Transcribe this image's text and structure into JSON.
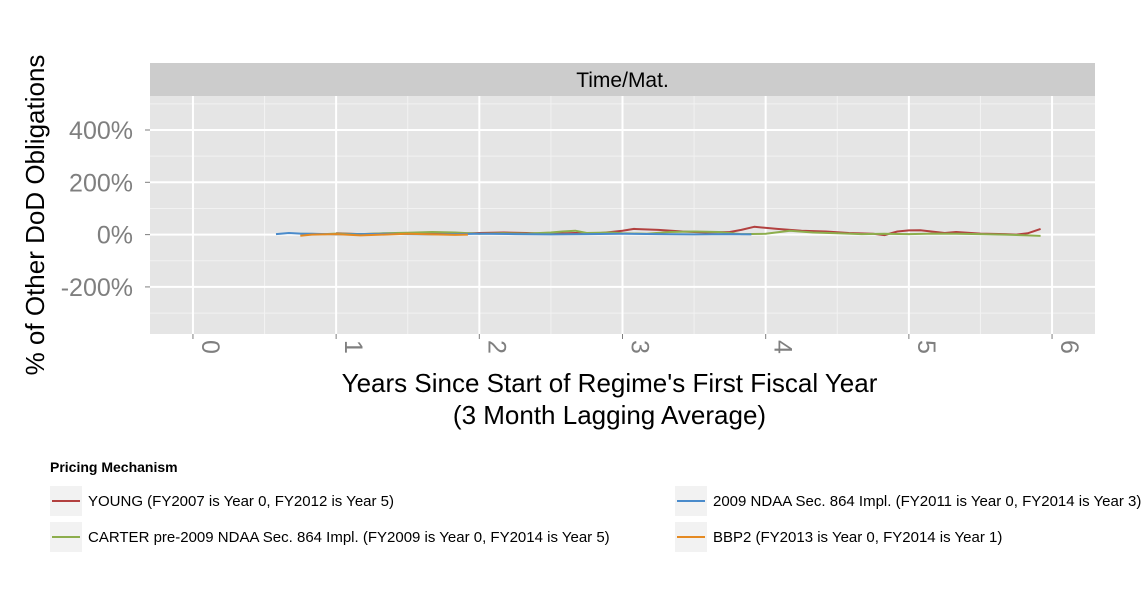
{
  "chart_data": {
    "type": "line",
    "facet_title": "Time/Mat.",
    "xlabel_line1": "Years Since Start of Regime's First Fiscal Year",
    "xlabel_line2": "(3 Month Lagging Average)",
    "ylabel": "% of Other DoD Obligations",
    "xlim": [
      -0.3,
      6.3
    ],
    "ylim": [
      -380,
      530
    ],
    "x_ticks": [
      {
        "value": 0,
        "label": "0"
      },
      {
        "value": 1,
        "label": "1"
      },
      {
        "value": 2,
        "label": "2"
      },
      {
        "value": 3,
        "label": "3"
      },
      {
        "value": 4,
        "label": "4"
      },
      {
        "value": 5,
        "label": "5"
      },
      {
        "value": 6,
        "label": "6"
      }
    ],
    "y_ticks": [
      {
        "value": 400,
        "label": "400%"
      },
      {
        "value": 200,
        "label": "200%"
      },
      {
        "value": 0,
        "label": "0%"
      },
      {
        "value": -200,
        "label": "-200%"
      }
    ],
    "grid": true,
    "legend_title": "Pricing Mechanism",
    "legend_position": "bottom",
    "series": [
      {
        "name": "YOUNG (FY2007 is Year 0, FY2012 is Year 5)",
        "color": "#B2403F",
        "x": [
          1.0,
          1.17,
          1.33,
          1.5,
          1.67,
          1.83,
          2.0,
          2.17,
          2.33,
          2.5,
          2.67,
          2.83,
          2.92,
          3.0,
          3.08,
          3.25,
          3.42,
          3.58,
          3.75,
          3.83,
          3.92,
          4.08,
          4.25,
          4.42,
          4.58,
          4.75,
          4.83,
          4.92,
          5.0,
          5.08,
          5.25,
          5.33,
          5.5,
          5.67,
          5.75,
          5.83,
          5.92
        ],
        "y": [
          5,
          2,
          4,
          3,
          5,
          3,
          6,
          8,
          6,
          3,
          6,
          5,
          10,
          15,
          22,
          18,
          12,
          8,
          10,
          18,
          30,
          22,
          15,
          12,
          6,
          3,
          -2,
          12,
          16,
          17,
          6,
          10,
          4,
          2,
          0,
          5,
          22
        ]
      },
      {
        "name": "CARTER pre-2009 NDAA Sec. 864 Impl. (FY2009 is Year 0, FY2014 is Year 5)",
        "color": "#8DAE4D",
        "x": [
          0.75,
          0.92,
          1.0,
          1.17,
          1.33,
          1.5,
          1.67,
          1.83,
          2.0,
          2.17,
          2.33,
          2.5,
          2.58,
          2.67,
          2.75,
          2.92,
          3.0,
          3.17,
          3.33,
          3.5,
          3.67,
          3.83,
          4.0,
          4.17,
          4.33,
          4.5,
          4.67,
          4.83,
          5.0,
          5.17,
          5.33,
          5.5,
          5.67,
          5.83,
          5.92
        ],
        "y": [
          3,
          2,
          4,
          2,
          5,
          7,
          10,
          8,
          3,
          5,
          4,
          8,
          12,
          15,
          6,
          8,
          5,
          3,
          10,
          12,
          10,
          2,
          3,
          15,
          8,
          5,
          2,
          3,
          2,
          4,
          3,
          2,
          0,
          -3,
          -5
        ]
      },
      {
        "name": "2009 NDAA Sec. 864 Impl. (FY2011 is Year 0, FY2014 is Year 3)",
        "color": "#4A8BCB",
        "x": [
          0.58,
          0.67,
          0.75,
          0.83,
          1.0,
          1.17,
          1.33,
          1.5,
          1.67,
          1.83,
          2.0,
          2.25,
          2.5,
          2.75,
          3.0,
          3.25,
          3.5,
          3.75,
          3.9
        ],
        "y": [
          2,
          6,
          4,
          3,
          1,
          2,
          3,
          2,
          1,
          2,
          3,
          2,
          1,
          2,
          3,
          2,
          1,
          2,
          1
        ]
      },
      {
        "name": "BBP2 (FY2013 is Year 0, FY2014 is Year 1)",
        "color": "#E58A22",
        "x": [
          0.75,
          0.83,
          1.0,
          1.17,
          1.33,
          1.5,
          1.67,
          1.83,
          1.92
        ],
        "y": [
          -4,
          0,
          2,
          -3,
          0,
          3,
          1,
          -1,
          0
        ]
      }
    ]
  },
  "legend": {
    "title": "Pricing Mechanism",
    "items": [
      {
        "label": "YOUNG (FY2007 is Year 0, FY2012 is Year 5)",
        "color": "#B2403F"
      },
      {
        "label": "2009 NDAA Sec. 864 Impl. (FY2011 is Year 0, FY2014 is Year 3)",
        "color": "#4A8BCB"
      },
      {
        "label": "CARTER pre-2009 NDAA Sec. 864 Impl. (FY2009 is Year 0, FY2014 is Year 5)",
        "color": "#8DAE4D"
      },
      {
        "label": "BBP2 (FY2013 is Year 0, FY2014 is Year 1)",
        "color": "#E58A22"
      }
    ]
  }
}
